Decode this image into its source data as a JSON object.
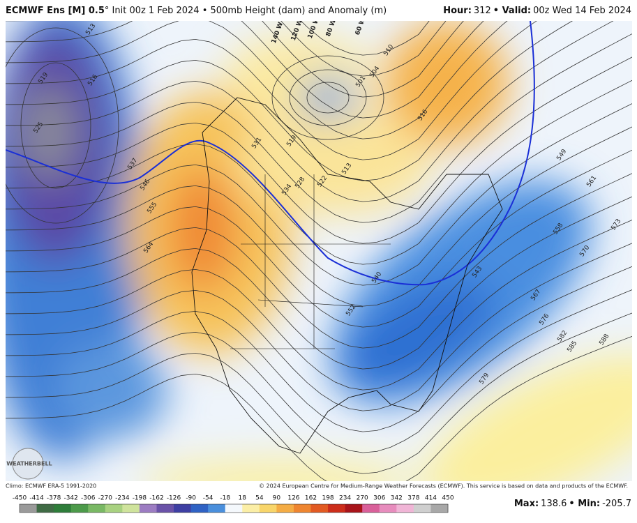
{
  "header": {
    "title_bold": "ECMWF Ens [M] 0.5",
    "title_rest": "° Init 00z 1 Feb 2024 • 500mb Height (dam) and Anomaly (m)",
    "hour_label": "Hour:",
    "hour": "312",
    "valid_label": "• Valid:",
    "valid": "00z Wed 14 Feb 2024"
  },
  "map": {
    "contour_labels": [
      513,
      519,
      516,
      525,
      537,
      546,
      555,
      564,
      531,
      528,
      534,
      522,
      519,
      513,
      510,
      504,
      501,
      516,
      549,
      561,
      558,
      573,
      570,
      543,
      540,
      552,
      567,
      576,
      582,
      585,
      588,
      579
    ],
    "longitude_labels": [
      "140 W",
      "120 W",
      "100 W",
      "80 W",
      "60 W"
    ],
    "logo": "WEATHERBELL"
  },
  "footer": {
    "climo": "Climo: ECMWF ERA-5 1991-2020",
    "copyright": "© 2024 European Centre for Medium-Range Weather Forecasts (ECMWF). This service is based on data and products of the ECMWF.",
    "colorbar": {
      "ticks": [
        -450,
        -414,
        -378,
        -342,
        -306,
        -270,
        -234,
        -198,
        -162,
        -126,
        -90,
        -54,
        -18,
        18,
        54,
        90,
        126,
        162,
        198,
        234,
        270,
        306,
        342,
        378,
        414,
        450
      ],
      "colors": [
        "#9a9a9a",
        "#3f6b45",
        "#2e7d3a",
        "#4c9a4a",
        "#79b864",
        "#a8d180",
        "#cfe39c",
        "#9c7cc2",
        "#6a52a8",
        "#3e3fa3",
        "#2f62c4",
        "#4a8fdc",
        "#f4f8fc",
        "#fbeea6",
        "#f8d56a",
        "#f4ac45",
        "#ee8530",
        "#e25a22",
        "#cc2d1b",
        "#a8141a",
        "#d9609a",
        "#e78cbd",
        "#f0b5d6",
        "#cfcfcf",
        "#a8a8a8"
      ]
    },
    "max_label": "Max:",
    "max": 138.6,
    "min_label": "• Min:",
    "min": -205.7
  }
}
